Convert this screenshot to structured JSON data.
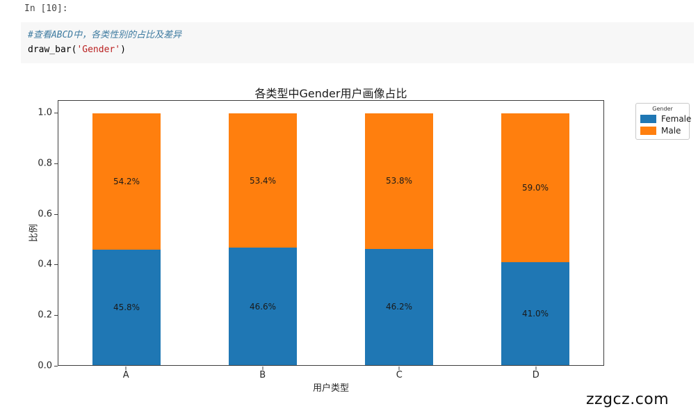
{
  "notebook": {
    "prompt": "In [10]:",
    "code": {
      "comment": "#查看ABCD中，各类性别的占比及差异",
      "func_open": "draw_bar(",
      "string_arg": "'Gender'",
      "func_close": ")"
    }
  },
  "chart_data": {
    "type": "bar",
    "stacked": true,
    "title": "各类型中Gender用户画像占比",
    "xlabel": "用户类型",
    "ylabel": "比例",
    "categories": [
      "A",
      "B",
      "C",
      "D"
    ],
    "series": [
      {
        "name": "Female",
        "color": "#1f77b4",
        "values": [
          45.8,
          46.6,
          46.2,
          41.0
        ]
      },
      {
        "name": "Male",
        "color": "#ff7f0e",
        "values": [
          54.2,
          53.4,
          53.8,
          59.0
        ]
      }
    ],
    "value_format": "percent",
    "yticks": [
      0.0,
      0.2,
      0.4,
      0.6,
      0.8,
      1.0
    ],
    "ytick_labels": [
      "0.0",
      "0.2",
      "0.4",
      "0.6",
      "0.8",
      "1.0"
    ],
    "ylim": [
      0,
      1.05
    ],
    "bar_rel_width": 0.5,
    "grid": false,
    "legend": {
      "title": "Gender",
      "position": "upper-right-outside"
    }
  },
  "watermark": "zzgcz.com"
}
